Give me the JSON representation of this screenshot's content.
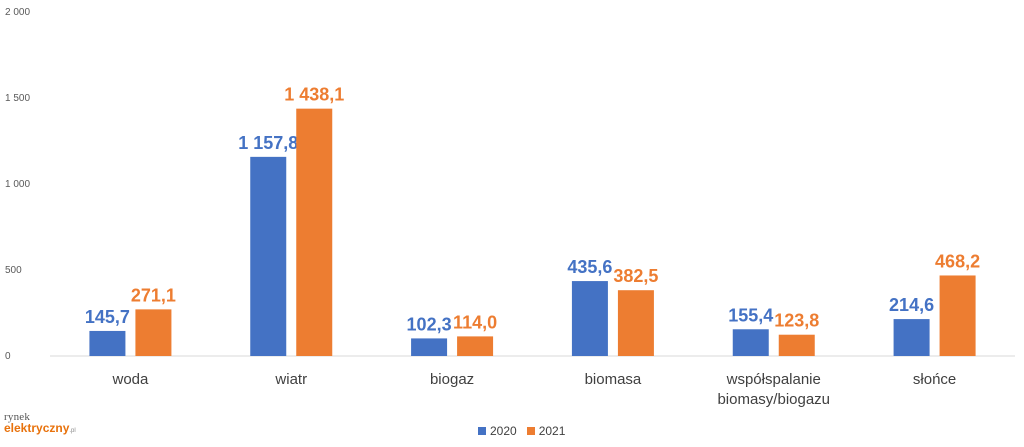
{
  "chart_data": {
    "type": "bar",
    "categories": [
      "woda",
      "wiatr",
      "biogaz",
      "biomasa",
      "współspalanie biomasy/biogazu",
      "słońce"
    ],
    "category_lines": [
      [
        "woda"
      ],
      [
        "wiatr"
      ],
      [
        "biogaz"
      ],
      [
        "biomasa"
      ],
      [
        "współspalanie",
        "biomasy/biogazu"
      ],
      [
        "słońce"
      ]
    ],
    "series": [
      {
        "name": "2020",
        "values": [
          145.7,
          1157.8,
          102.3,
          435.6,
          155.4,
          214.6
        ],
        "labels": [
          "145,7",
          "1 157,8",
          "102,3",
          "435,6",
          "155,4",
          "214,6"
        ],
        "color": "#4472c4"
      },
      {
        "name": "2021",
        "values": [
          271.1,
          1438.1,
          114.0,
          382.5,
          123.8,
          468.2
        ],
        "labels": [
          "271,1",
          "1 438,1",
          "114,0",
          "382,5",
          "123,8",
          "468,2"
        ],
        "color": "#ed7d31"
      }
    ],
    "yticks": [
      0,
      500,
      1000,
      1500,
      2000
    ],
    "ytick_labels": [
      "0",
      "500",
      "1 000",
      "1 500",
      "2 000"
    ],
    "ylim": [
      0,
      2000
    ],
    "grid": false,
    "legend_position": "bottom",
    "title": "",
    "xlabel": "",
    "ylabel": ""
  },
  "legend": {
    "series1": "2020",
    "series2": "2021"
  },
  "logo": {
    "line1": "rynek",
    "line2": "elektryczny",
    "suffix": ".pl"
  }
}
